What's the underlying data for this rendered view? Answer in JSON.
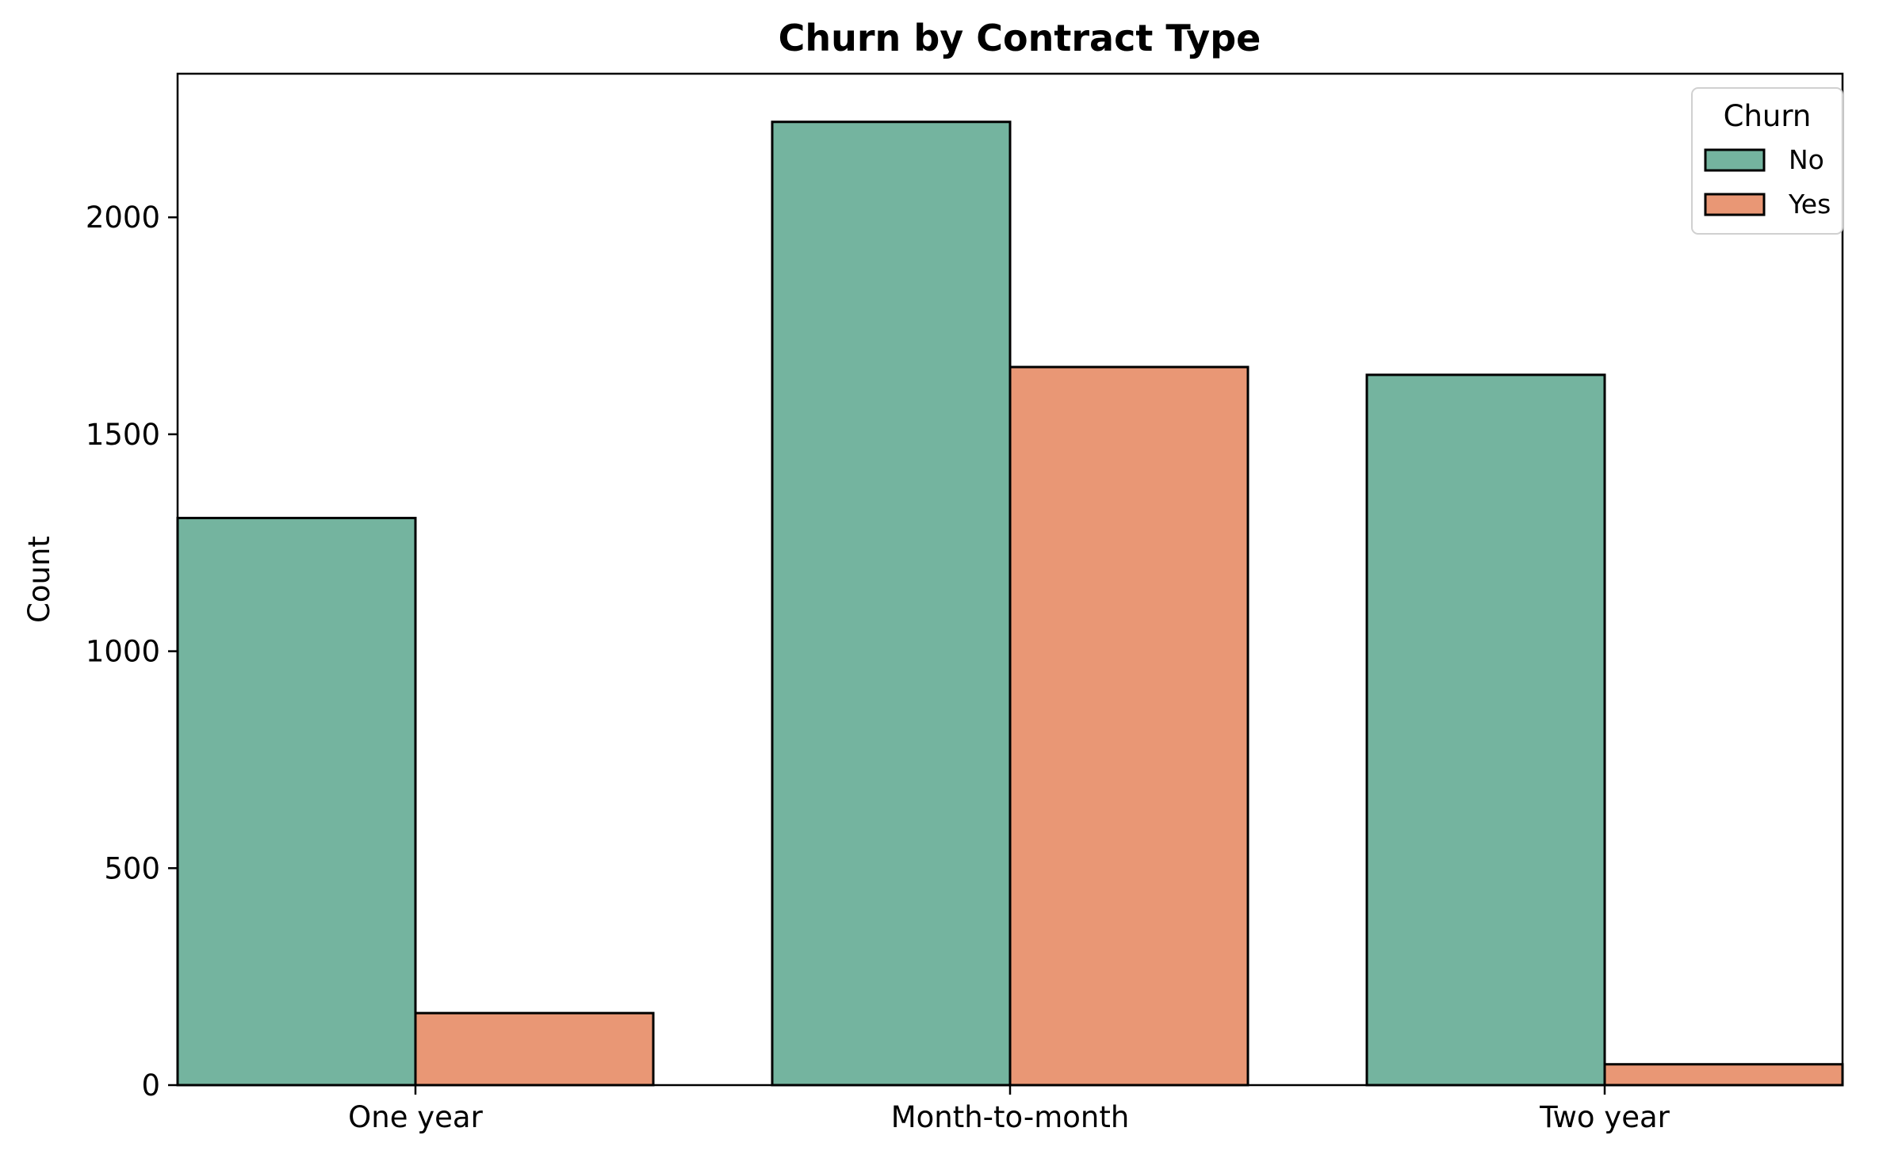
{
  "chart_data": {
    "type": "bar",
    "title": "Churn by Contract Type",
    "xlabel": "",
    "ylabel": "Count",
    "categories": [
      "One year",
      "Month-to-month",
      "Two year"
    ],
    "series": [
      {
        "name": "No",
        "values": [
          1307,
          2220,
          1637
        ],
        "color": "#74b49f"
      },
      {
        "name": "Yes",
        "values": [
          166,
          1655,
          48
        ],
        "color": "#e99775"
      }
    ],
    "ylim": [
      0,
      2331
    ],
    "yticks": [
      0,
      500,
      1000,
      1500,
      2000
    ],
    "legend": {
      "title": "Churn",
      "position": "top-right"
    },
    "grid": false
  }
}
